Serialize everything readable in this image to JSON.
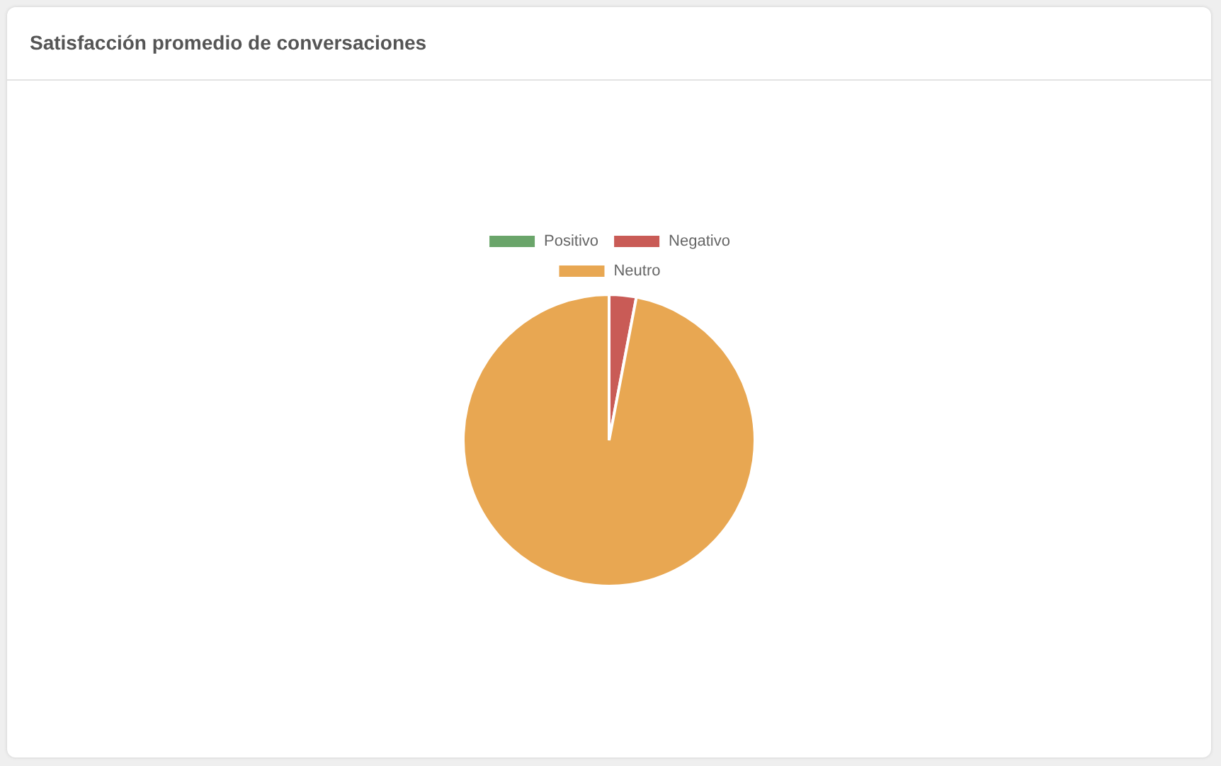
{
  "chart_data": {
    "type": "pie",
    "title": "Satisfacción promedio de conversaciones",
    "categories": [
      "Positivo",
      "Negativo",
      "Neutro"
    ],
    "values": [
      0,
      3,
      97
    ],
    "colors": [
      "#6aa56a",
      "#c95b56",
      "#e8a752"
    ],
    "legend": "top"
  }
}
